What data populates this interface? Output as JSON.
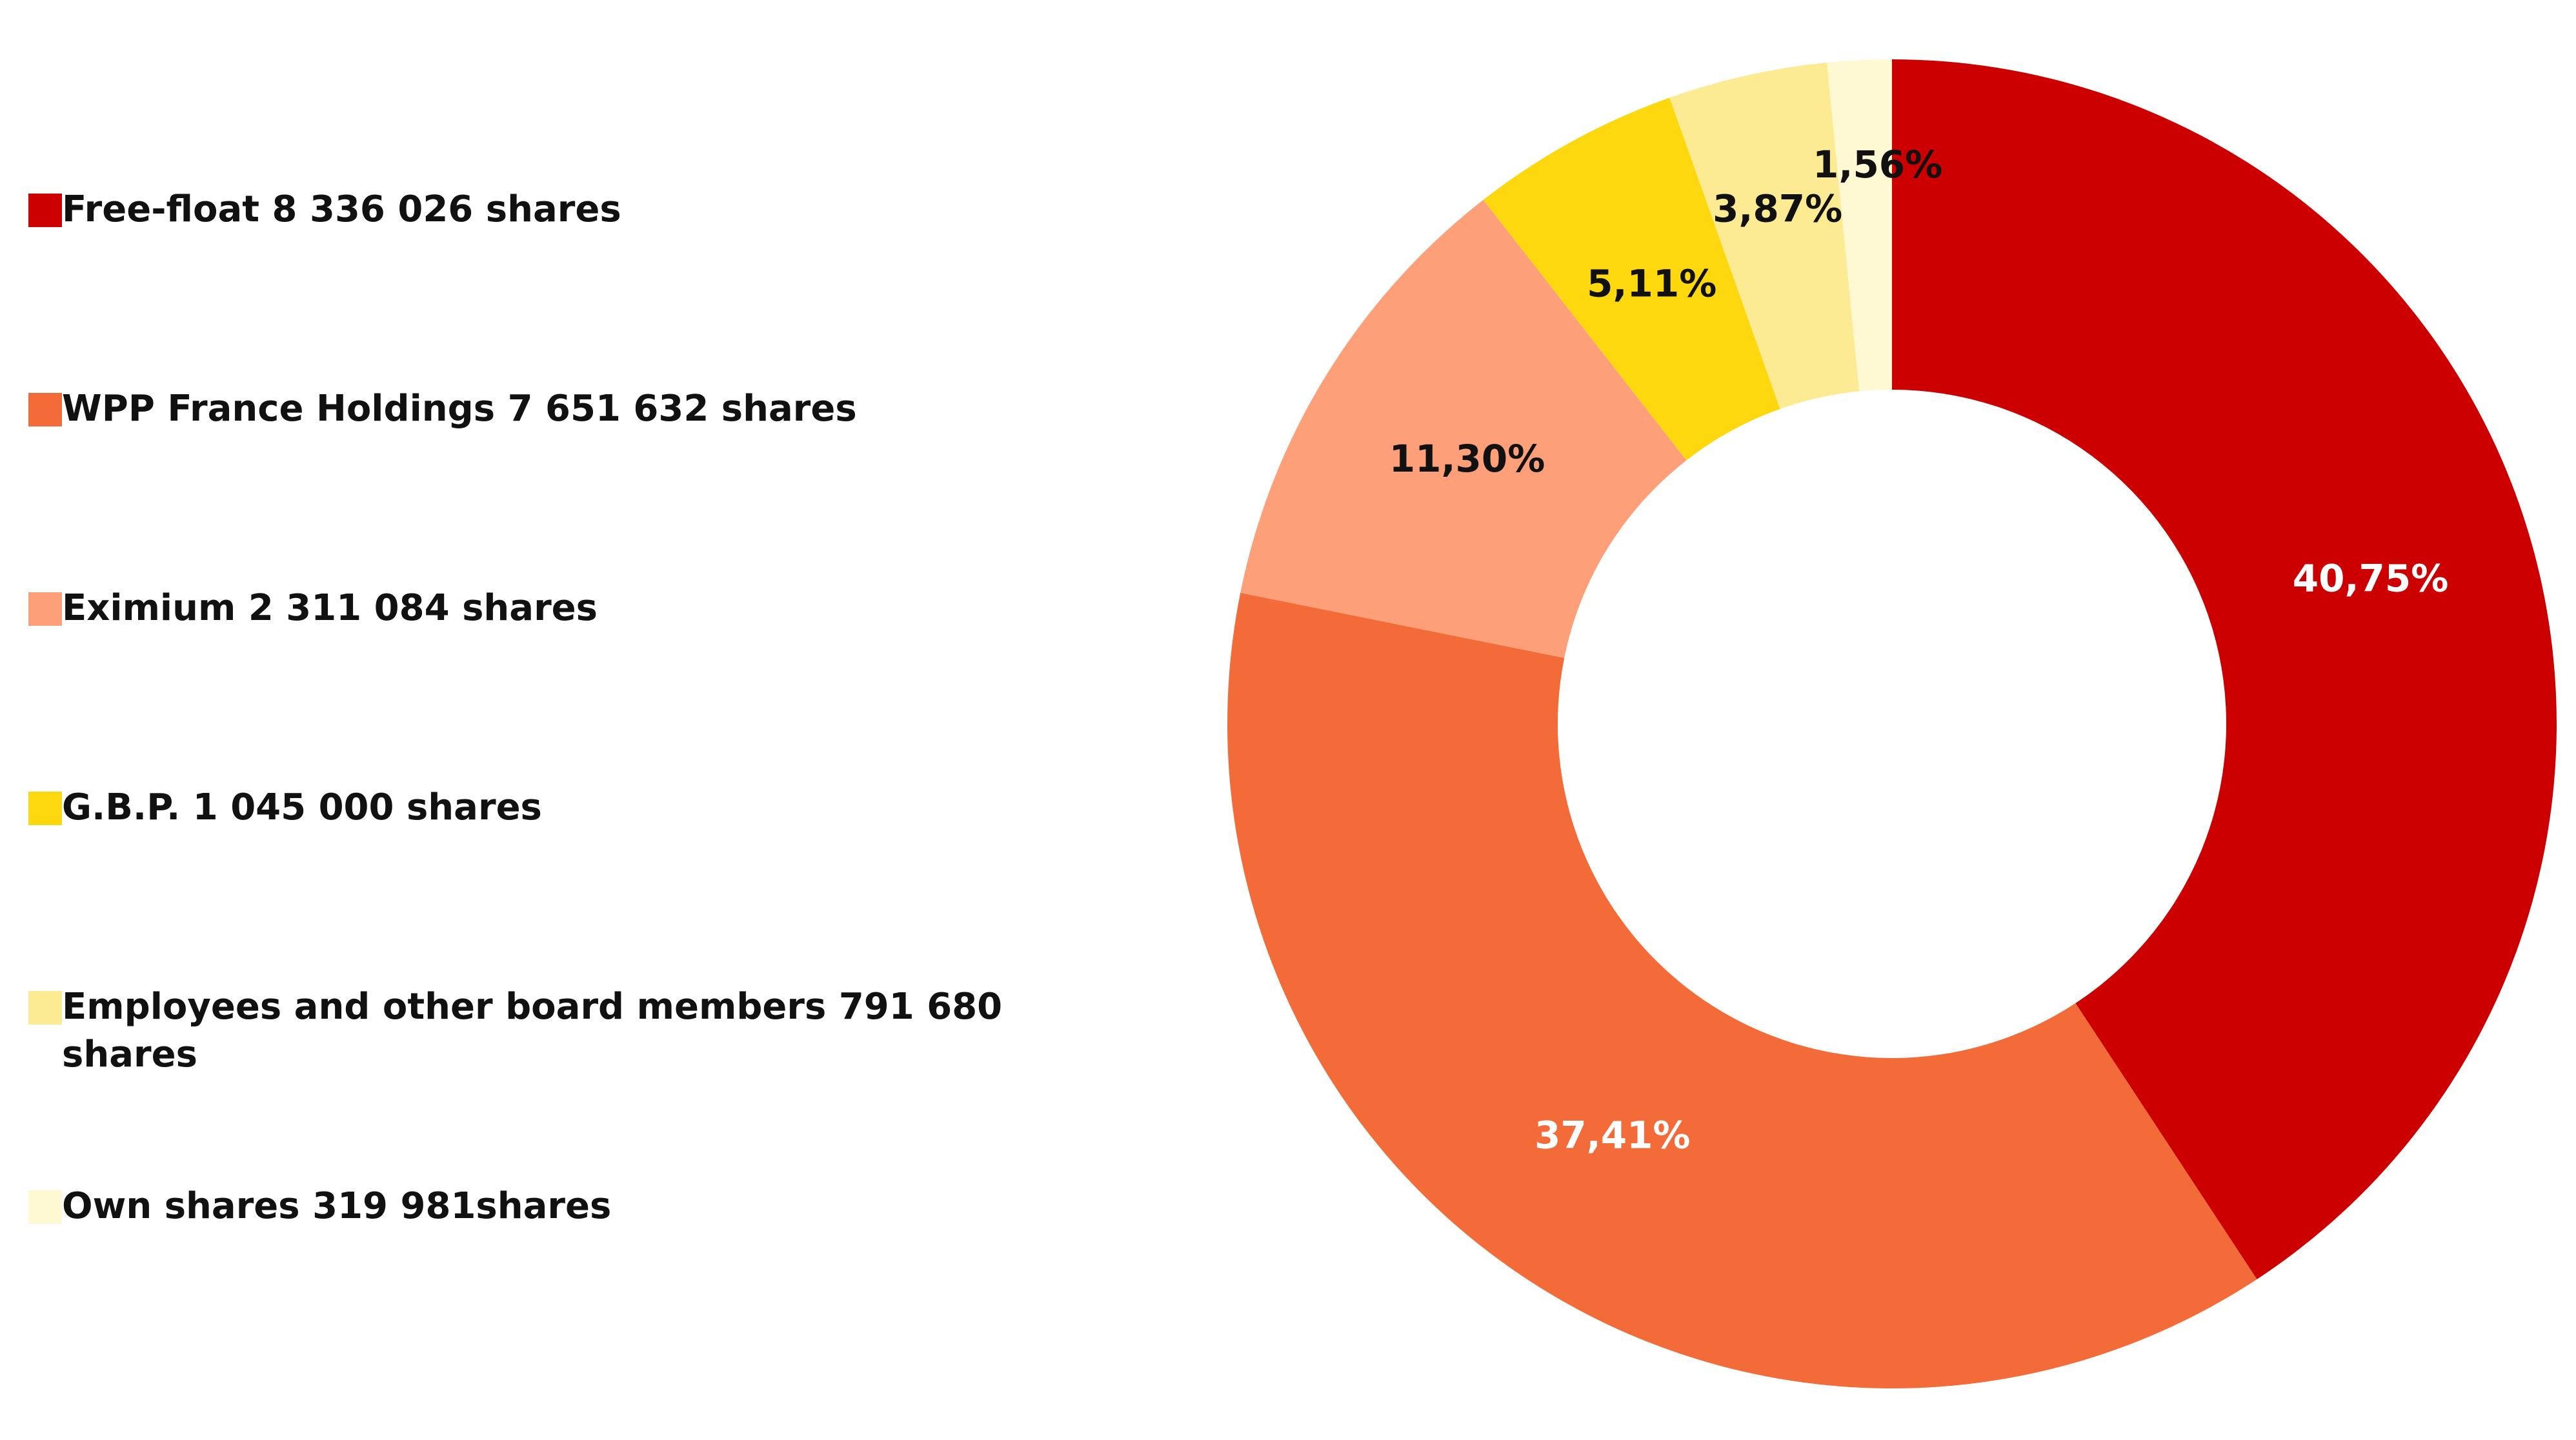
{
  "chart_data": {
    "type": "pie",
    "donut": true,
    "legend_position": "left",
    "slices": [
      {
        "name": "Free-float 8 336 026 shares",
        "value": 40.75,
        "label": "40,75%",
        "color": "#CC0000",
        "label_color": "#FFFFFF"
      },
      {
        "name": "WPP France Holdings 7 651 632 shares",
        "value": 37.41,
        "label": "37,41%",
        "color": "#F26B38",
        "label_color": "#FFFFFF"
      },
      {
        "name": "Eximium 2 311 084 shares",
        "value": 11.3,
        "label": "11,30%",
        "color": "#FDA07A",
        "label_color": "#111111"
      },
      {
        "name": "G.B.P. 1 045 000 shares",
        "value": 5.11,
        "label": "5,11%",
        "color": "#FDD80F",
        "label_color": "#111111"
      },
      {
        "name": "Employees and other board members 791 680 shares",
        "value": 3.87,
        "label": "3,87%",
        "color": "#FDEB94",
        "label_color": "#111111"
      },
      {
        "name": "Own shares 319 981shares",
        "value": 1.56,
        "label": "1,56%",
        "color": "#FEF8D3",
        "label_color": "#111111"
      }
    ]
  }
}
